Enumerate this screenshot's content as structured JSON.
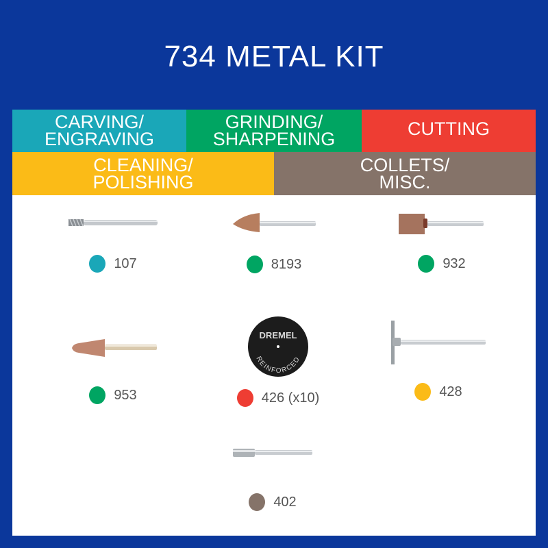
{
  "title": "734 METAL KIT",
  "colors": {
    "background": "#0b379b",
    "carving": "#1aa7b8",
    "grinding": "#00a562",
    "cutting": "#ee3d33",
    "cleaning": "#fbbb17",
    "collets": "#857369"
  },
  "categories": [
    {
      "line1": "CARVING/",
      "line2": "ENGRAVING",
      "color": "#1aa7b8"
    },
    {
      "line1": "GRINDING/",
      "line2": "SHARPENING",
      "color": "#00a562"
    },
    {
      "line1": "CUTTING",
      "line2": "",
      "color": "#ee3d33"
    },
    {
      "line1": "CLEANING/",
      "line2": "POLISHING",
      "color": "#fbbb17"
    },
    {
      "line1": "COLLETS/",
      "line2": "MISC.",
      "color": "#857369"
    }
  ],
  "items": [
    {
      "code": "107",
      "category": "carving",
      "icon": "carbide-cutter-icon"
    },
    {
      "code": "8193",
      "category": "grinding",
      "icon": "grinding-stone-cone-icon"
    },
    {
      "code": "932",
      "category": "grinding",
      "icon": "grinding-stone-cylinder-icon"
    },
    {
      "code": "953",
      "category": "grinding",
      "icon": "grinding-stone-taper-icon"
    },
    {
      "code": "426 (x10)",
      "category": "cutting",
      "icon": "cutoff-wheel-icon",
      "disc_brand": "DREMEL",
      "disc_text": "REINFORCED"
    },
    {
      "code": "428",
      "category": "cleaning",
      "icon": "wire-brush-icon"
    },
    {
      "code": "402",
      "category": "collets",
      "icon": "mandrel-icon"
    }
  ]
}
